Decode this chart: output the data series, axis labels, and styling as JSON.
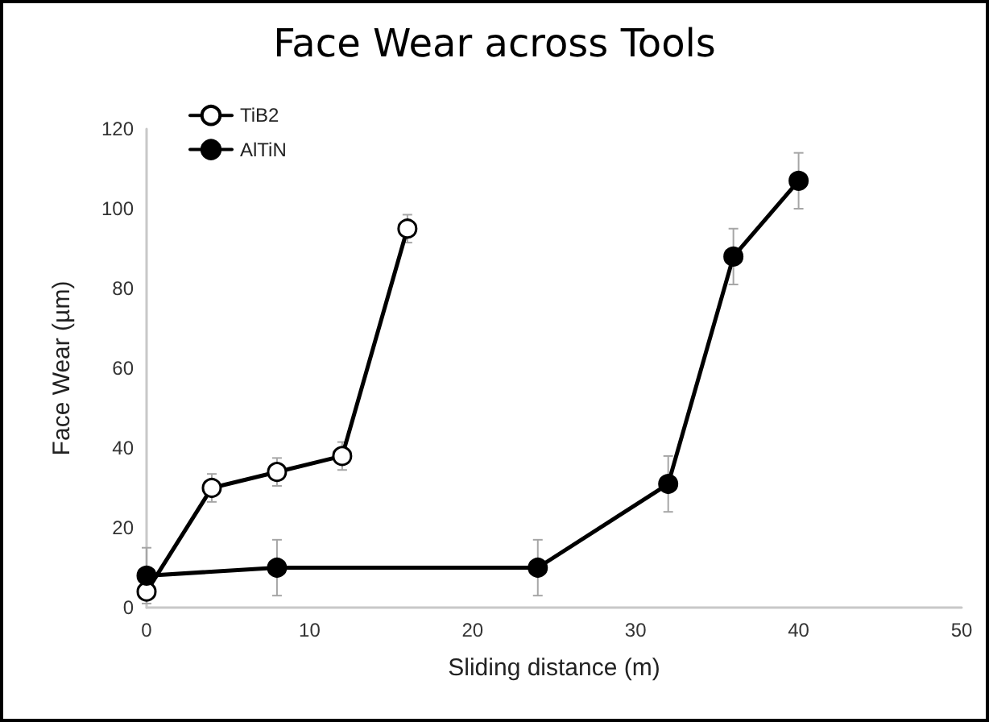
{
  "chart_data": {
    "type": "line",
    "title": "Face Wear across Tools",
    "xlabel": "Sliding distance (m)",
    "ylabel": "Face Wear (µm)",
    "xlim": [
      0,
      50
    ],
    "xticks": [
      0,
      10,
      20,
      30,
      40,
      50
    ],
    "ylim": [
      0,
      120
    ],
    "yticks": [
      0,
      20,
      40,
      60,
      80,
      100,
      120
    ],
    "grid": false,
    "legend": "top left",
    "line_style": "solid",
    "series": [
      {
        "name": "TiB2",
        "color": "#000000",
        "marker": "circle",
        "x": [
          0,
          4,
          8,
          12,
          16
        ],
        "values": [
          4,
          30,
          34,
          38,
          95
        ],
        "errors": [
          2,
          3.5,
          3.5,
          3.5,
          3.5
        ]
      },
      {
        "name": "AlTiN",
        "color": "#000000",
        "marker": "circle",
        "x": [
          0,
          8,
          24,
          32,
          36,
          40
        ],
        "values": [
          8,
          10,
          10,
          31,
          88,
          107
        ],
        "errors": [
          7,
          7,
          7,
          7,
          7,
          7
        ]
      }
    ]
  }
}
